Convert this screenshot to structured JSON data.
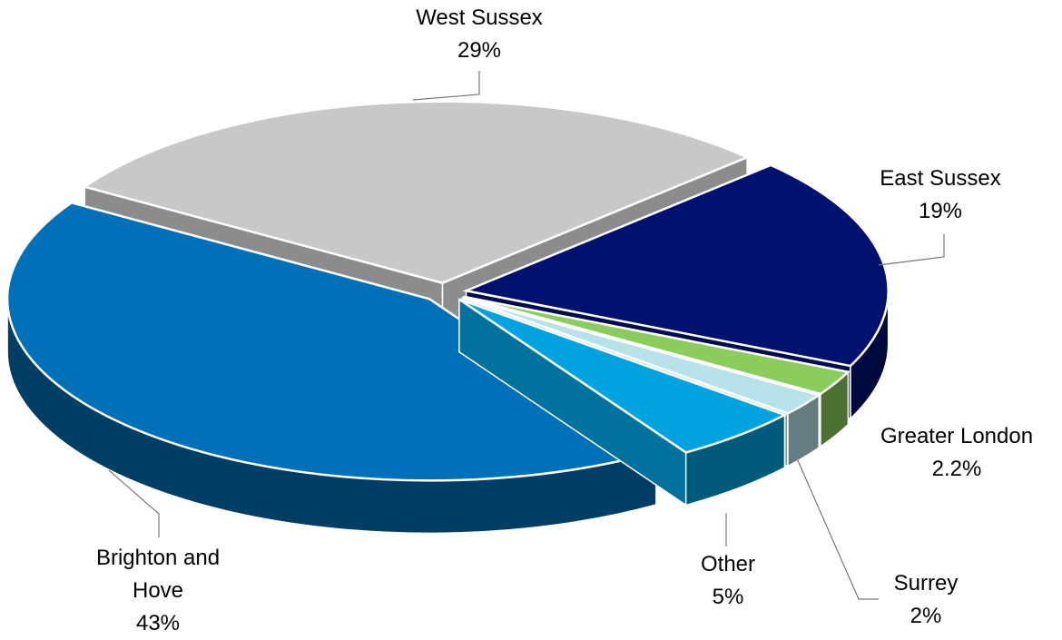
{
  "chart_data": {
    "type": "pie",
    "categories": [
      "West Sussex",
      "East Sussex",
      "Greater London",
      "Surrey",
      "Other",
      "Brighton and Hove"
    ],
    "values": [
      29,
      19,
      2.2,
      2,
      5,
      43
    ],
    "value_labels": [
      "29%",
      "19%",
      "2.2%",
      "2%",
      "5%",
      "43%"
    ],
    "colors": [
      "#c8c8c8",
      "#001170",
      "#8ccc5c",
      "#b8e2ea",
      "#00a3e0",
      "#0070b8"
    ]
  }
}
